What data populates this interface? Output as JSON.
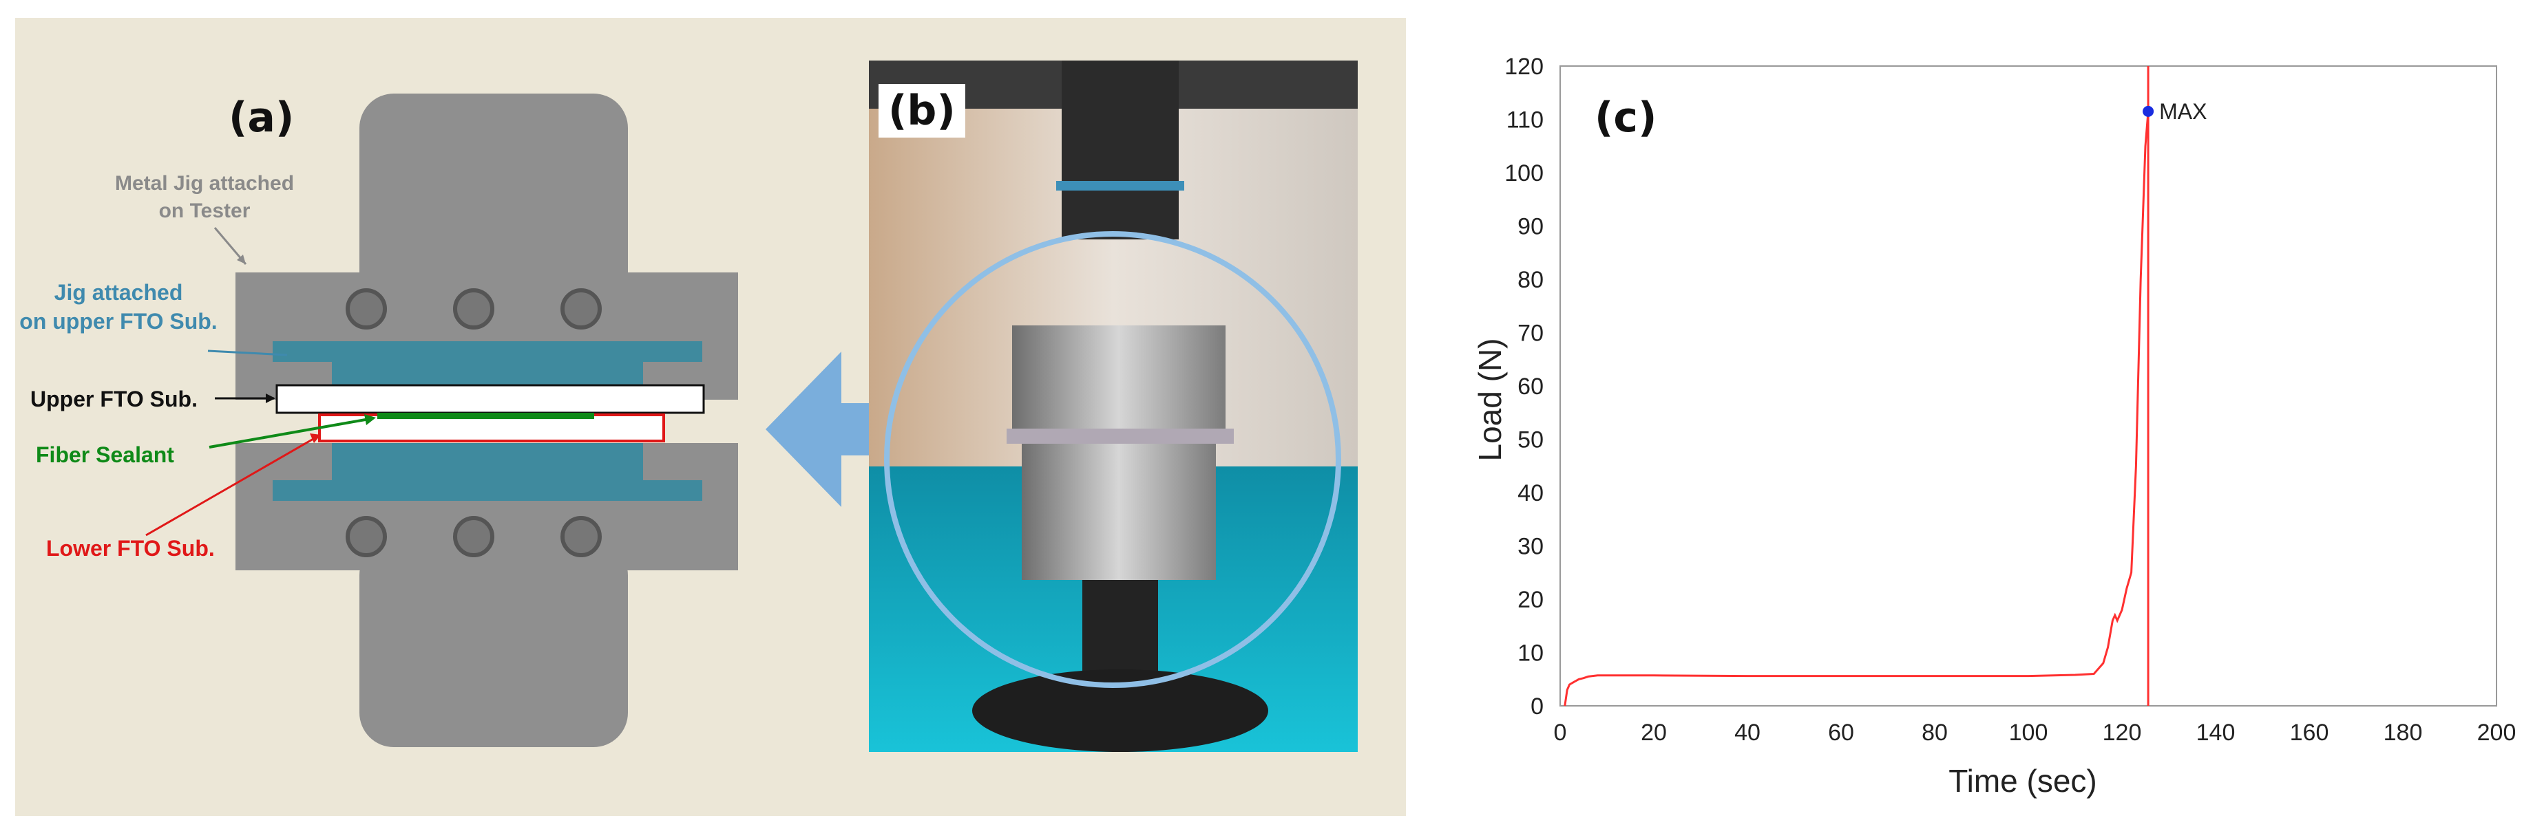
{
  "panel_a": {
    "tag": "(a)",
    "metal_jig_label": [
      "Metal Jig attached",
      "on Tester"
    ],
    "jig_upper_label": [
      "Jig attached",
      "on upper FTO Sub."
    ],
    "upper_fto_label": "Upper FTO Sub.",
    "fiber_sealant_label": "Fiber Sealant",
    "lower_fto_label": "Lower FTO Sub.",
    "colors": {
      "jig_gray": "#8f8f8f",
      "jig_blue": "#3f8a9e",
      "sealant": "#0f8a18",
      "lower_sub": "#e01818",
      "arrow": "#7aaedc"
    }
  },
  "panel_b": {
    "tag": "(b)"
  },
  "panel_c": {
    "tag": "(c)",
    "chart_data": {
      "type": "line",
      "xlabel": "Time (sec)",
      "ylabel": "Load (N)",
      "xlim": [
        0,
        200
      ],
      "ylim": [
        0,
        120
      ],
      "x_ticks": [
        0,
        20,
        40,
        60,
        80,
        100,
        120,
        140,
        160,
        180,
        200
      ],
      "y_ticks": [
        0,
        10,
        20,
        30,
        40,
        50,
        60,
        70,
        80,
        90,
        100,
        110,
        120
      ],
      "grid": true,
      "line_color": "#ff3030",
      "series": [
        {
          "x": [
            1,
            1.5,
            2,
            3,
            4,
            5,
            6,
            8,
            20,
            40,
            60,
            80,
            100,
            110,
            114,
            116,
            117,
            118,
            118.5,
            119,
            120,
            121,
            122,
            123,
            124,
            125,
            125.6
          ],
          "y": [
            0,
            3,
            4,
            4.5,
            5,
            5.2,
            5.5,
            5.7,
            5.7,
            5.6,
            5.6,
            5.6,
            5.6,
            5.8,
            6,
            8,
            11,
            16,
            17,
            16,
            18,
            22,
            25,
            45,
            80,
            105,
            111.5
          ]
        }
      ],
      "annotations": [
        {
          "label": "MAX",
          "x": 125.6,
          "y": 111.5
        }
      ],
      "max_line_x": 125.6
    }
  }
}
